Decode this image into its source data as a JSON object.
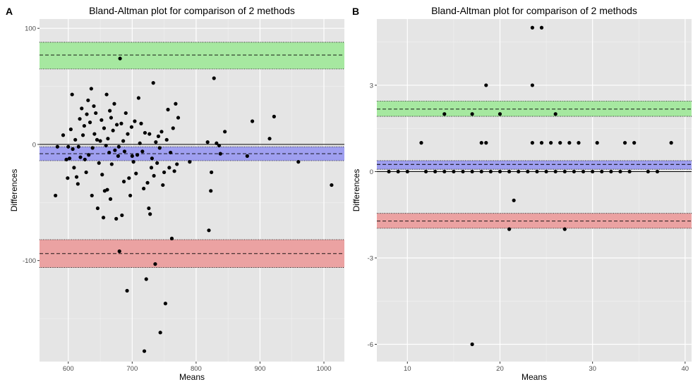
{
  "chart_data": [
    {
      "panel": "A",
      "type": "scatter",
      "title": "Bland-Altman plot for comparison of 2 methods",
      "xlabel": "Means",
      "ylabel": "Differences",
      "xlim": [
        555,
        1032
      ],
      "ylim": [
        -187,
        108
      ],
      "xticks": [
        600,
        700,
        800,
        900,
        1000
      ],
      "yticks": [
        -100,
        0,
        100
      ],
      "grid": true,
      "bands": [
        {
          "name": "upper limit of agreement",
          "center": 77,
          "low": 65,
          "high": 88,
          "color": "#a6e8a0"
        },
        {
          "name": "bias",
          "center": -8,
          "low": -14,
          "high": -2,
          "color": "#9f9ff0"
        },
        {
          "name": "lower limit of agreement",
          "center": -94,
          "low": -106,
          "high": -82,
          "color": "#eba2a2"
        }
      ],
      "zero_line": 0,
      "points": [
        [
          580,
          -44
        ],
        [
          583,
          -2
        ],
        [
          592,
          8
        ],
        [
          597,
          -13
        ],
        [
          599,
          -29
        ],
        [
          600,
          -2
        ],
        [
          602,
          -12
        ],
        [
          604,
          13
        ],
        [
          606,
          43
        ],
        [
          607,
          -4
        ],
        [
          609,
          -20
        ],
        [
          611,
          4
        ],
        [
          613,
          -28
        ],
        [
          615,
          -34
        ],
        [
          616,
          -2
        ],
        [
          618,
          22
        ],
        [
          619,
          -11
        ],
        [
          621,
          31
        ],
        [
          623,
          8
        ],
        [
          625,
          16
        ],
        [
          626,
          -13
        ],
        [
          628,
          -24
        ],
        [
          629,
          26
        ],
        [
          631,
          38
        ],
        [
          632,
          -9
        ],
        [
          634,
          19
        ],
        [
          636,
          48
        ],
        [
          637,
          -44
        ],
        [
          638,
          -3
        ],
        [
          640,
          33
        ],
        [
          641,
          9
        ],
        [
          643,
          27
        ],
        [
          645,
          4
        ],
        [
          646,
          -55
        ],
        [
          648,
          -16
        ],
        [
          650,
          3
        ],
        [
          652,
          21
        ],
        [
          653,
          -26
        ],
        [
          655,
          -63
        ],
        [
          656,
          14
        ],
        [
          657,
          -40
        ],
        [
          659,
          -1
        ],
        [
          660,
          43
        ],
        [
          661,
          -39
        ],
        [
          662,
          5
        ],
        [
          664,
          -7
        ],
        [
          665,
          29
        ],
        [
          666,
          -47
        ],
        [
          667,
          23
        ],
        [
          668,
          -17
        ],
        [
          670,
          12
        ],
        [
          672,
          35
        ],
        [
          673,
          -5
        ],
        [
          675,
          -64
        ],
        [
          676,
          17
        ],
        [
          678,
          -10
        ],
        [
          679,
          -2
        ],
        [
          680,
          -92
        ],
        [
          681,
          74
        ],
        [
          683,
          18
        ],
        [
          684,
          -61
        ],
        [
          686,
          3
        ],
        [
          687,
          -32
        ],
        [
          688,
          -6
        ],
        [
          690,
          27
        ],
        [
          692,
          -126
        ],
        [
          693,
          9
        ],
        [
          695,
          -29
        ],
        [
          697,
          -44
        ],
        [
          699,
          15
        ],
        [
          700,
          -10
        ],
        [
          702,
          -15
        ],
        [
          704,
          20
        ],
        [
          706,
          -25
        ],
        [
          708,
          -9
        ],
        [
          710,
          40
        ],
        [
          712,
          1
        ],
        [
          714,
          18
        ],
        [
          716,
          -6
        ],
        [
          718,
          -38
        ],
        [
          719,
          -178
        ],
        [
          720,
          10
        ],
        [
          722,
          -116
        ],
        [
          724,
          -33
        ],
        [
          726,
          -55
        ],
        [
          727,
          9
        ],
        [
          728,
          -60
        ],
        [
          730,
          -20
        ],
        [
          731,
          -12
        ],
        [
          733,
          53
        ],
        [
          734,
          -27
        ],
        [
          736,
          -103
        ],
        [
          737,
          2
        ],
        [
          739,
          -16
        ],
        [
          741,
          7
        ],
        [
          743,
          -3
        ],
        [
          744,
          -162
        ],
        [
          746,
          11
        ],
        [
          748,
          -35
        ],
        [
          750,
          -24
        ],
        [
          752,
          -137
        ],
        [
          754,
          4
        ],
        [
          756,
          30
        ],
        [
          758,
          -20
        ],
        [
          760,
          -7
        ],
        [
          762,
          -81
        ],
        [
          764,
          14
        ],
        [
          766,
          -23
        ],
        [
          768,
          35
        ],
        [
          770,
          -17
        ],
        [
          772,
          23
        ],
        [
          790,
          -15
        ],
        [
          818,
          2
        ],
        [
          820,
          -74
        ],
        [
          823,
          -40
        ],
        [
          824,
          -24
        ],
        [
          828,
          57
        ],
        [
          832,
          1
        ],
        [
          836,
          -1
        ],
        [
          838,
          -8
        ],
        [
          845,
          11
        ],
        [
          880,
          -10
        ],
        [
          888,
          20
        ],
        [
          915,
          5
        ],
        [
          922,
          24
        ],
        [
          960,
          -15
        ],
        [
          1012,
          -35
        ]
      ]
    },
    {
      "panel": "B",
      "type": "scatter",
      "title": "Bland-Altman plot for comparison of 2 methods",
      "xlabel": "Means",
      "ylabel": "Differences",
      "xlim": [
        6.7,
        40.7
      ],
      "ylim": [
        -6.6,
        5.3
      ],
      "xticks": [
        10,
        20,
        30,
        40
      ],
      "yticks": [
        -6,
        -3,
        0,
        3
      ],
      "grid": true,
      "bands": [
        {
          "name": "upper limit of agreement",
          "center": 2.17,
          "low": 1.92,
          "high": 2.45,
          "color": "#a6e8a0"
        },
        {
          "name": "bias",
          "center": 0.25,
          "low": 0.08,
          "high": 0.38,
          "color": "#9f9ff0"
        },
        {
          "name": "lower limit of agreement",
          "center": -1.72,
          "low": -1.97,
          "high": -1.45,
          "color": "#eba2a2"
        }
      ],
      "zero_line": 0,
      "points": [
        [
          8,
          0
        ],
        [
          9,
          0
        ],
        [
          10,
          0
        ],
        [
          11.5,
          1
        ],
        [
          12,
          0
        ],
        [
          13,
          0
        ],
        [
          14,
          0
        ],
        [
          14,
          2
        ],
        [
          15,
          0
        ],
        [
          16,
          0
        ],
        [
          17,
          0
        ],
        [
          17,
          2
        ],
        [
          17,
          -6
        ],
        [
          18,
          0
        ],
        [
          18,
          1
        ],
        [
          18.5,
          3
        ],
        [
          18.5,
          1
        ],
        [
          19,
          0
        ],
        [
          20,
          0
        ],
        [
          20,
          2
        ],
        [
          21,
          0
        ],
        [
          21,
          -2
        ],
        [
          21.5,
          -1
        ],
        [
          22,
          0
        ],
        [
          23,
          0
        ],
        [
          23.5,
          5
        ],
        [
          23.5,
          3
        ],
        [
          23.5,
          1
        ],
        [
          24,
          0
        ],
        [
          24.5,
          5
        ],
        [
          24.5,
          1
        ],
        [
          25,
          0
        ],
        [
          25.5,
          1
        ],
        [
          26,
          0
        ],
        [
          26,
          2
        ],
        [
          26.5,
          1
        ],
        [
          27,
          0
        ],
        [
          27,
          -2
        ],
        [
          27.5,
          1
        ],
        [
          28,
          0
        ],
        [
          28.5,
          1
        ],
        [
          29,
          0
        ],
        [
          30,
          0
        ],
        [
          30.5,
          1
        ],
        [
          31,
          0
        ],
        [
          32,
          0
        ],
        [
          33,
          0
        ],
        [
          33.5,
          1
        ],
        [
          34,
          0
        ],
        [
          34.5,
          1
        ],
        [
          36,
          0
        ],
        [
          37,
          0
        ],
        [
          38.5,
          1
        ]
      ]
    }
  ]
}
